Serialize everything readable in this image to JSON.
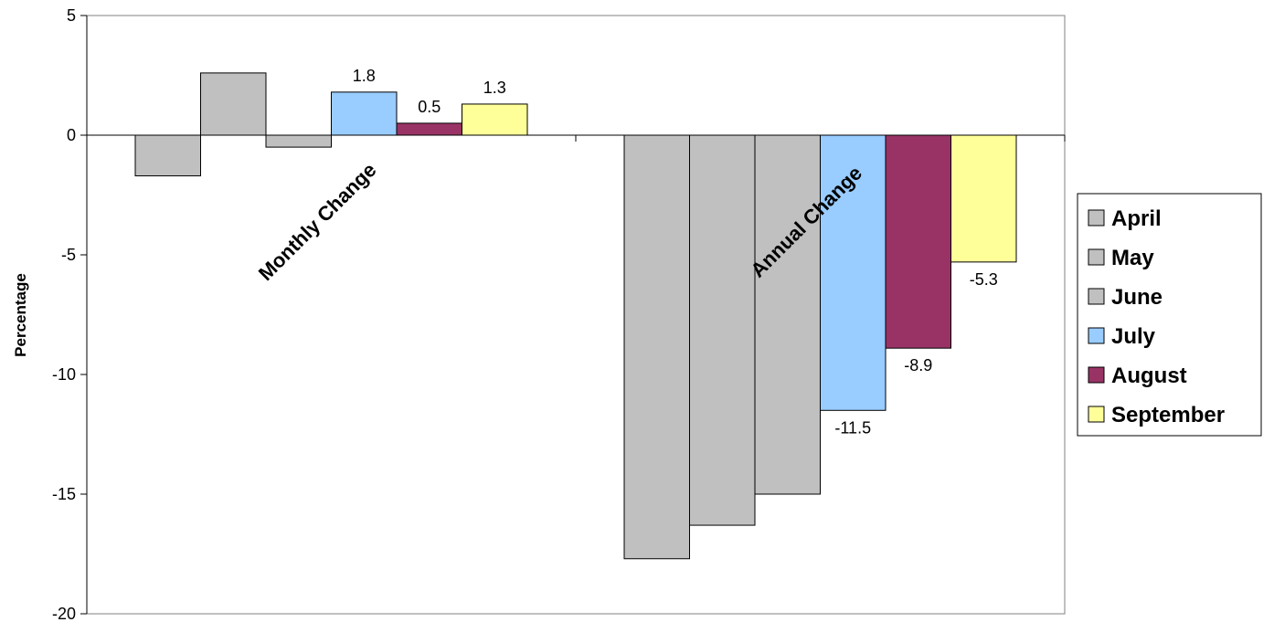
{
  "chart_data": {
    "type": "bar",
    "ylabel": "Percentage",
    "ylim": [
      -20,
      5
    ],
    "yticks": [
      5,
      0,
      -5,
      -10,
      -15,
      -20
    ],
    "grid": false,
    "legend_position": "right",
    "categories": [
      "Monthly Change",
      "Annual Change"
    ],
    "series": [
      {
        "name": "April",
        "color": "#c0c0c0",
        "values": [
          -1.7,
          -17.7
        ],
        "labels": [
          "",
          ""
        ]
      },
      {
        "name": "May",
        "color": "#c0c0c0",
        "values": [
          2.6,
          -16.3
        ],
        "labels": [
          "",
          ""
        ]
      },
      {
        "name": "June",
        "color": "#c0c0c0",
        "values": [
          -0.5,
          -15.0
        ],
        "labels": [
          "",
          ""
        ]
      },
      {
        "name": "July",
        "color": "#99ccff",
        "values": [
          1.8,
          -11.5
        ],
        "labels": [
          "1.8",
          "-11.5"
        ]
      },
      {
        "name": "August",
        "color": "#993366",
        "values": [
          0.5,
          -8.9
        ],
        "labels": [
          "0.5",
          "-8.9"
        ]
      },
      {
        "name": "September",
        "color": "#ffff99",
        "values": [
          1.3,
          -5.3
        ],
        "labels": [
          "1.3",
          "-5.3"
        ]
      }
    ]
  }
}
